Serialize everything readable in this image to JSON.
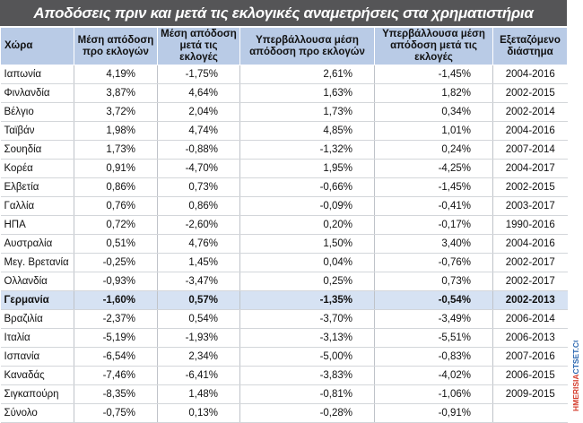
{
  "title": "Αποδόσεις πριν και μετά τις εκλογικές αναμετρήσεις στα χρηματιστήρια",
  "headers": [
    "Χώρα",
    "Μέση απόδοση προ εκλογών",
    "Μέση απόδοση μετά τις εκλογές",
    "Υπερβάλλουσα μέση απόδοση προ εκλογών",
    "Υπερβάλλουσα μέση απόδοση μετά τις εκλογές",
    "Εξεταζόμενο διάστημα"
  ],
  "rows": [
    {
      "country": "Ιαπωνία",
      "pre": "4,19%",
      "post": "-1,75%",
      "excess_pre": "2,61%",
      "excess_post": "-1,45%",
      "period": "2004-2016"
    },
    {
      "country": "Φινλανδία",
      "pre": "3,87%",
      "post": "4,64%",
      "excess_pre": "1,63%",
      "excess_post": "1,82%",
      "period": "2002-2015"
    },
    {
      "country": "Βέλγιο",
      "pre": "3,72%",
      "post": "2,04%",
      "excess_pre": "1,73%",
      "excess_post": "0,34%",
      "period": "2002-2014"
    },
    {
      "country": "Ταϊβάν",
      "pre": "1,98%",
      "post": "4,74%",
      "excess_pre": "4,85%",
      "excess_post": "1,01%",
      "period": "2004-2016"
    },
    {
      "country": "Σουηδία",
      "pre": "1,73%",
      "post": "-0,88%",
      "excess_pre": "-1,32%",
      "excess_post": "0,24%",
      "period": "2007-2014"
    },
    {
      "country": "Κορέα",
      "pre": "0,91%",
      "post": "-4,70%",
      "excess_pre": "1,95%",
      "excess_post": "-4,25%",
      "period": "2004-2017"
    },
    {
      "country": "Ελβετία",
      "pre": "0,86%",
      "post": "0,73%",
      "excess_pre": "-0,66%",
      "excess_post": "-1,45%",
      "period": "2002-2015"
    },
    {
      "country": "Γαλλία",
      "pre": "0,76%",
      "post": "0,86%",
      "excess_pre": "-0,09%",
      "excess_post": "-0,41%",
      "period": "2003-2017"
    },
    {
      "country": "ΗΠΑ",
      "pre": "0,72%",
      "post": "-2,60%",
      "excess_pre": "0,20%",
      "excess_post": "-0,17%",
      "period": "1990-2016"
    },
    {
      "country": "Αυστραλία",
      "pre": "0,51%",
      "post": "4,76%",
      "excess_pre": "1,50%",
      "excess_post": "3,40%",
      "period": "2004-2016"
    },
    {
      "country": "Μεγ. Βρετανία",
      "pre": "-0,25%",
      "post": "1,45%",
      "excess_pre": "0,04%",
      "excess_post": "-0,76%",
      "period": "2002-2017"
    },
    {
      "country": "Ολλανδία",
      "pre": "-0,93%",
      "post": "-3,47%",
      "excess_pre": "0,25%",
      "excess_post": "0,73%",
      "period": "2002-2017"
    },
    {
      "country": "Γερμανία",
      "pre": "-1,60%",
      "post": "0,57%",
      "excess_pre": "-1,35%",
      "excess_post": "-0,54%",
      "period": "2002-2013"
    },
    {
      "country": "Βραζιλία",
      "pre": "-2,37%",
      "post": "0,54%",
      "excess_pre": "-3,70%",
      "excess_post": "-3,49%",
      "period": "2006-2014"
    },
    {
      "country": "Ιταλία",
      "pre": "-5,19%",
      "post": "-1,93%",
      "excess_pre": "-3,13%",
      "excess_post": "-5,51%",
      "period": "2006-2013"
    },
    {
      "country": "Ισπανία",
      "pre": "-6,54%",
      "post": "2,34%",
      "excess_pre": "-5,00%",
      "excess_post": "-0,83%",
      "period": "2007-2016"
    },
    {
      "country": "Καναδάς",
      "pre": "-7,46%",
      "post": "-6,41%",
      "excess_pre": "-3,83%",
      "excess_post": "-4,02%",
      "period": "2006-2015"
    },
    {
      "country": "Σιγκαπούρη",
      "pre": "-8,35%",
      "post": "1,48%",
      "excess_pre": "-0,81%",
      "excess_post": "-1,06%",
      "period": "2009-2015"
    },
    {
      "country": "Σύνολο",
      "pre": "-0,75%",
      "post": "0,13%",
      "excess_pre": "-0,28%",
      "excess_post": "-0,91%",
      "period": ""
    }
  ],
  "highlight_row": "Γερμανία",
  "watermark": "HMERISIACTSET.COM",
  "colors": {
    "title_bg": "#555557",
    "header_bg": "#b9cbe6",
    "highlight_bg": "#d6e2f3",
    "watermark_red": "#d43a2a",
    "watermark_blue": "#2a66b0"
  }
}
